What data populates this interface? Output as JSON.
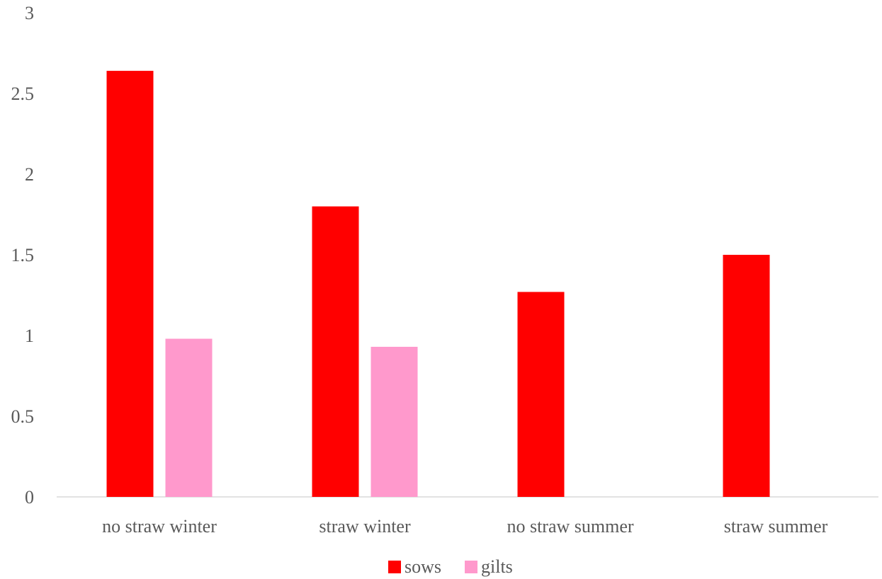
{
  "chart_data": {
    "type": "bar",
    "title": "",
    "xlabel": "",
    "ylabel": "",
    "categories": [
      "no straw winter",
      "straw winter",
      "no straw summer",
      "straw summer"
    ],
    "series": [
      {
        "name": "sows",
        "color": "#ff0000",
        "values": [
          2.64,
          1.8,
          1.27,
          1.5
        ]
      },
      {
        "name": "gilts",
        "color": "#ff99cc",
        "values": [
          0.98,
          0.93,
          null,
          null
        ]
      }
    ],
    "ylim": [
      0,
      3
    ],
    "yticks": [
      "0",
      "0.5",
      "1",
      "1.5",
      "2",
      "2.5",
      "3"
    ],
    "grid": false,
    "legend": "bottom"
  }
}
